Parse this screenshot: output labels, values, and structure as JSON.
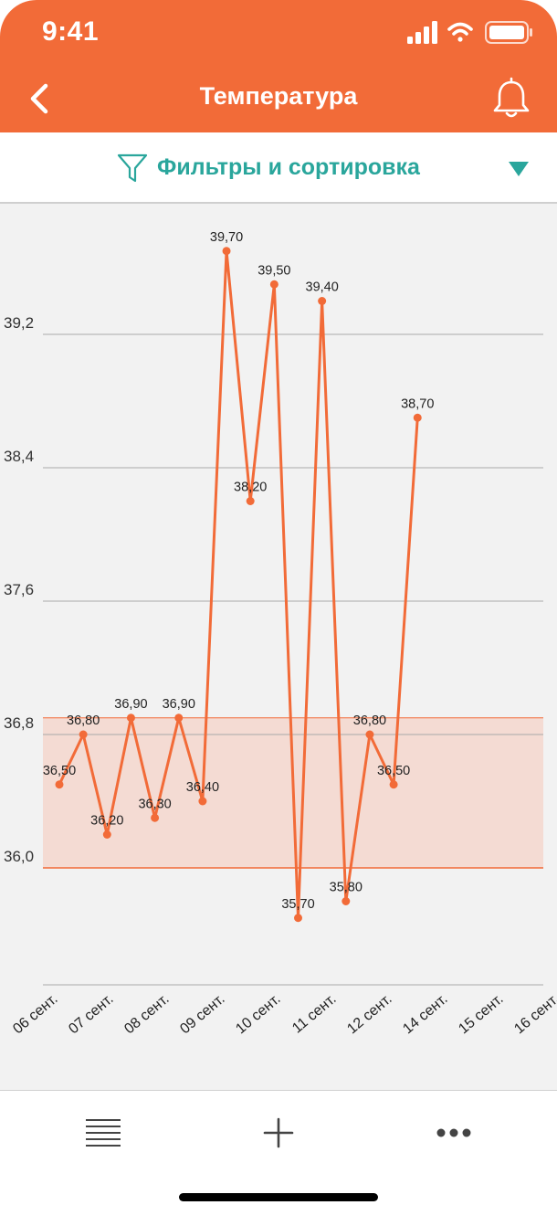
{
  "status_bar": {
    "time": "9:41"
  },
  "header": {
    "title": "Температура"
  },
  "filter": {
    "label": "Фильтры и сортировка"
  },
  "colors": {
    "header": "#f26b38",
    "line": "#f26b38",
    "band": "#f4dbd3",
    "accent": "#2aa69c"
  },
  "icons": {
    "back": "chevron-left-icon",
    "bell": "bell-icon",
    "filter": "funnel-icon",
    "dropdown": "triangle-down-icon",
    "list": "list-icon",
    "add": "plus-icon",
    "more": "more-dots-icon"
  },
  "chart_data": {
    "type": "line",
    "title": "",
    "xlabel": "",
    "ylabel": "",
    "ylim": [
      35.4,
      40.1
    ],
    "yticks": [
      "39,2",
      "38,4",
      "37,6",
      "36,8",
      "36,0"
    ],
    "ytick_values": [
      39.2,
      38.4,
      37.6,
      36.8,
      36.0
    ],
    "x_tick_labels": [
      "06 сент.",
      "07 сент.",
      "08 сент.",
      "09 сент.",
      "10 сент.",
      "11 сент.",
      "12 сент.",
      "14 сент.",
      "15 сент.",
      "16 сент."
    ],
    "normal_range": [
      36.0,
      36.9
    ],
    "grid": true,
    "series": [
      {
        "values": [
          36.5,
          36.8,
          36.2,
          36.9,
          36.3,
          36.9,
          36.4,
          39.7,
          38.2,
          39.5,
          35.7,
          39.4,
          35.8,
          36.8,
          36.5,
          38.7
        ],
        "labels": [
          "36,50",
          "36,80",
          "36,20",
          "36,90",
          "36,30",
          "36,90",
          "36,40",
          "39,70",
          "38,20",
          "39,50",
          "35,70",
          "39,40",
          "35,80",
          "36,80",
          "36,50",
          "38,70"
        ]
      }
    ]
  }
}
